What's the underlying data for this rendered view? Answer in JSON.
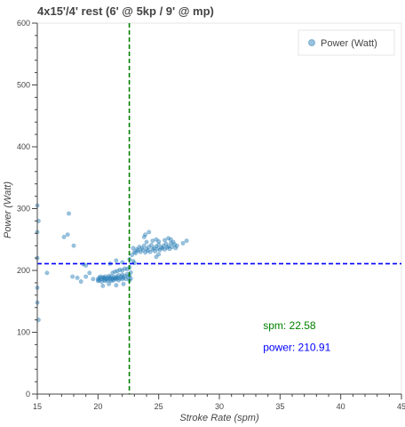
{
  "chart_data": {
    "type": "scatter",
    "title": "4x15'/4' rest (6' @ 5kp / 9' @ mp)",
    "xlabel": "Stroke Rate (spm)",
    "ylabel": "Power (Watt)",
    "xlim": [
      15,
      45
    ],
    "ylim": [
      0,
      600
    ],
    "xticks": [
      "15",
      "20",
      "25",
      "30",
      "35",
      "40",
      "45"
    ],
    "yticks": [
      "0",
      "100",
      "200",
      "300",
      "400",
      "500",
      "600"
    ],
    "grid": false,
    "legend": {
      "position": "top-right",
      "entries": [
        "Power (Watt)"
      ]
    },
    "series": [
      {
        "name": "Power (Watt)",
        "color": "#1f77b4",
        "points": [
          [
            15.0,
            305
          ],
          [
            15.1,
            280
          ],
          [
            15.0,
            262
          ],
          [
            15.0,
            220
          ],
          [
            15.0,
            172
          ],
          [
            15.0,
            148
          ],
          [
            15.1,
            120
          ],
          [
            15.8,
            196
          ],
          [
            17.2,
            254
          ],
          [
            17.5,
            258
          ],
          [
            17.6,
            292
          ],
          [
            18.0,
            240
          ],
          [
            18.8,
            210
          ],
          [
            19.0,
            208
          ],
          [
            17.9,
            190
          ],
          [
            18.3,
            188
          ],
          [
            18.6,
            182
          ],
          [
            19.0,
            190
          ],
          [
            19.3,
            196
          ],
          [
            19.6,
            186
          ],
          [
            20.0,
            183
          ],
          [
            20.0,
            186
          ],
          [
            20.1,
            188
          ],
          [
            20.1,
            184
          ],
          [
            20.2,
            190
          ],
          [
            20.3,
            182
          ],
          [
            20.3,
            186
          ],
          [
            20.4,
            189
          ],
          [
            20.5,
            185
          ],
          [
            20.5,
            188
          ],
          [
            20.6,
            183
          ],
          [
            20.6,
            190
          ],
          [
            20.7,
            186
          ],
          [
            20.8,
            184
          ],
          [
            20.8,
            188
          ],
          [
            20.9,
            191
          ],
          [
            21.0,
            185
          ],
          [
            21.0,
            188
          ],
          [
            21.1,
            183
          ],
          [
            21.1,
            190
          ],
          [
            21.2,
            186
          ],
          [
            21.3,
            189
          ],
          [
            21.3,
            184
          ],
          [
            21.4,
            187
          ],
          [
            21.5,
            190
          ],
          [
            21.5,
            186
          ],
          [
            21.6,
            188
          ],
          [
            21.7,
            184
          ],
          [
            21.7,
            192
          ],
          [
            21.8,
            187
          ],
          [
            21.9,
            190
          ],
          [
            22.0,
            186
          ],
          [
            22.0,
            193
          ],
          [
            22.1,
            188
          ],
          [
            22.2,
            191
          ],
          [
            22.3,
            186
          ],
          [
            22.4,
            194
          ],
          [
            22.5,
            189
          ],
          [
            22.6,
            192
          ],
          [
            22.7,
            187
          ],
          [
            21.2,
            196
          ],
          [
            21.4,
            198
          ],
          [
            21.6,
            199
          ],
          [
            21.8,
            201
          ],
          [
            22.0,
            200
          ],
          [
            22.2,
            203
          ],
          [
            22.4,
            202
          ],
          [
            22.6,
            205
          ],
          [
            20.4,
            175
          ],
          [
            20.9,
            178
          ],
          [
            21.5,
            176
          ],
          [
            22.1,
            178
          ],
          [
            21.0,
            211
          ],
          [
            21.5,
            216
          ],
          [
            22.0,
            213
          ],
          [
            22.9,
            215
          ],
          [
            23.0,
            212
          ],
          [
            22.8,
            225
          ],
          [
            22.9,
            236
          ],
          [
            22.6,
            218
          ],
          [
            22.7,
            197
          ],
          [
            22.6,
            184
          ],
          [
            23.0,
            230
          ],
          [
            23.2,
            234
          ],
          [
            23.4,
            238
          ],
          [
            23.6,
            236
          ],
          [
            23.8,
            240
          ],
          [
            24.0,
            235
          ],
          [
            24.2,
            238
          ],
          [
            24.4,
            241
          ],
          [
            24.6,
            236
          ],
          [
            24.8,
            239
          ],
          [
            25.0,
            242
          ],
          [
            25.2,
            237
          ],
          [
            25.4,
            240
          ],
          [
            25.6,
            243
          ],
          [
            25.8,
            239
          ],
          [
            26.0,
            244
          ],
          [
            23.1,
            228
          ],
          [
            23.3,
            232
          ],
          [
            23.5,
            230
          ],
          [
            23.7,
            233
          ],
          [
            23.9,
            229
          ],
          [
            24.1,
            232
          ],
          [
            24.3,
            230
          ],
          [
            24.5,
            234
          ],
          [
            24.7,
            231
          ],
          [
            24.9,
            235
          ],
          [
            25.1,
            233
          ],
          [
            25.3,
            236
          ],
          [
            25.5,
            234
          ],
          [
            25.7,
            237
          ],
          [
            25.9,
            235
          ],
          [
            26.1,
            238
          ],
          [
            24.0,
            246
          ],
          [
            24.5,
            248
          ],
          [
            25.0,
            247
          ],
          [
            25.5,
            249
          ],
          [
            26.0,
            250
          ],
          [
            26.2,
            246
          ],
          [
            25.8,
            252
          ],
          [
            24.8,
            250
          ],
          [
            26.3,
            242
          ],
          [
            26.4,
            236
          ],
          [
            26.5,
            240
          ],
          [
            27.3,
            248
          ],
          [
            27.0,
            244
          ],
          [
            23.9,
            258
          ],
          [
            24.2,
            262
          ],
          [
            23.8,
            254
          ],
          [
            25.0,
            226
          ],
          [
            24.8,
            222
          ]
        ]
      }
    ],
    "reference_lines": [
      {
        "orientation": "vertical",
        "value": 22.58,
        "color": "#008000",
        "style": "dashed"
      },
      {
        "orientation": "horizontal",
        "value": 210.91,
        "color": "#0000ff",
        "style": "dashed"
      }
    ],
    "annotations": [
      {
        "text": "spm:  22.58",
        "color": "#008000",
        "x": 33.6,
        "y": 105
      },
      {
        "text": "power: 210.91",
        "color": "#0000ff",
        "x": 33.6,
        "y": 70
      }
    ]
  }
}
